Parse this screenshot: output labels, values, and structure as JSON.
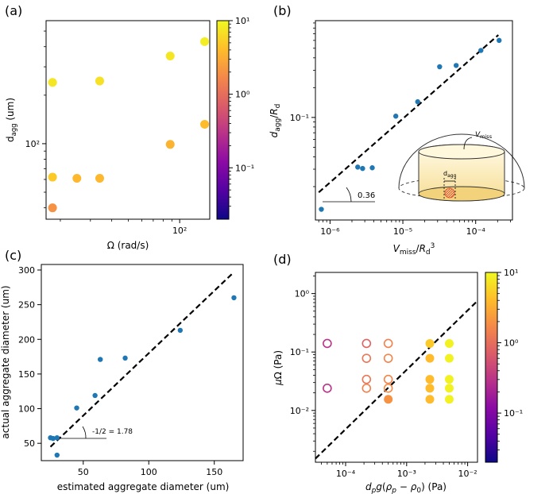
{
  "figure": {
    "panel_labels": [
      "(a)",
      "(b)",
      "(c)",
      "(d)"
    ]
  },
  "chart_data": [
    {
      "panel": "(a)",
      "type": "scatter",
      "xlabel": "Ω (rad/s)",
      "ylabel": "d_agg (um)",
      "xscale": "log",
      "yscale": "log",
      "xlim": [
        16.5,
        150
      ],
      "ylim": [
        34,
        580
      ],
      "x_ticks": [
        {
          "value": 100,
          "label": "10²"
        }
      ],
      "y_ticks": [
        {
          "value": 100,
          "label": "10²"
        }
      ],
      "points": [
        {
          "x": 18,
          "y": 40,
          "c": 2.0
        },
        {
          "x": 18,
          "y": 62,
          "c": 5.0
        },
        {
          "x": 18,
          "y": 240,
          "c": 7.5
        },
        {
          "x": 25,
          "y": 61,
          "c": 3.8
        },
        {
          "x": 34,
          "y": 61,
          "c": 3.8
        },
        {
          "x": 34,
          "y": 245,
          "c": 7.0
        },
        {
          "x": 88,
          "y": 99,
          "c": 3.5
        },
        {
          "x": 88,
          "y": 350,
          "c": 7.5
        },
        {
          "x": 140,
          "y": 132,
          "c": 4.0
        },
        {
          "x": 140,
          "y": 430,
          "c": 8.5
        }
      ],
      "colorbar": {
        "colormap": "plasma",
        "scale": "log",
        "range": [
          0.02,
          10
        ],
        "ticks": [
          {
            "value": 10,
            "label": "10¹"
          },
          {
            "value": 1,
            "label": "10⁰"
          },
          {
            "value": 0.1,
            "label": "10⁻¹"
          }
        ]
      }
    },
    {
      "panel": "(b)",
      "type": "scatter",
      "xlabel": "V_miss/R_d³",
      "ylabel": "d_agg/R_d",
      "xscale": "log",
      "yscale": "log",
      "xlim": [
        6.3e-07,
        0.00032
      ],
      "ylim": [
        0.0092,
        0.95
      ],
      "x_ticks": [
        {
          "value": 1e-06,
          "label": "10⁻⁶"
        },
        {
          "value": 1e-05,
          "label": "10⁻⁵"
        },
        {
          "value": 0.0001,
          "label": "10⁻⁴"
        }
      ],
      "y_ticks": [
        {
          "value": 0.1,
          "label": "10⁻¹"
        }
      ],
      "points": [
        {
          "x": 7.6e-07,
          "y": 0.0118
        },
        {
          "x": 2.4e-06,
          "y": 0.0315
        },
        {
          "x": 2.8e-06,
          "y": 0.0305
        },
        {
          "x": 3.8e-06,
          "y": 0.031
        },
        {
          "x": 8e-06,
          "y": 0.103
        },
        {
          "x": 1.6e-05,
          "y": 0.144
        },
        {
          "x": 3.2e-05,
          "y": 0.325
        },
        {
          "x": 5.4e-05,
          "y": 0.335
        },
        {
          "x": 0.000118,
          "y": 0.475
        },
        {
          "x": 0.00021,
          "y": 0.6
        }
      ],
      "fit_line": {
        "style": "dashed",
        "points": [
          [
            7e-07,
            0.0175
          ],
          [
            0.000205,
            0.68
          ]
        ]
      },
      "slope_annotation": "0.36",
      "inset": {
        "label_volume": "V_miss",
        "label_diameter": "d_agg"
      }
    },
    {
      "panel": "(c)",
      "type": "scatter",
      "xlabel": "estimated aggregate diameter (um)",
      "ylabel": "actual aggregate diameter (um)",
      "xlim": [
        18,
        172
      ],
      "ylim": [
        25,
        308
      ],
      "x_ticks": [
        50,
        100,
        150
      ],
      "y_ticks": [
        50,
        100,
        150,
        200,
        250,
        300
      ],
      "points": [
        {
          "x": 25,
          "y": 58
        },
        {
          "x": 27,
          "y": 57
        },
        {
          "x": 30,
          "y": 58
        },
        {
          "x": 30,
          "y": 33
        },
        {
          "x": 45,
          "y": 101
        },
        {
          "x": 59,
          "y": 119
        },
        {
          "x": 63,
          "y": 171
        },
        {
          "x": 82,
          "y": 173
        },
        {
          "x": 124,
          "y": 213
        },
        {
          "x": 165,
          "y": 260
        }
      ],
      "fit_line": {
        "style": "dashed",
        "points": [
          [
            25,
            45
          ],
          [
            165,
            297
          ]
        ]
      },
      "slope_annotation": "-1/2 = 1.78"
    },
    {
      "panel": "(d)",
      "type": "scatter",
      "xlabel": "d_p g(ρ_p − ρ_0) (Pa)",
      "ylabel": "μΩ (Pa)",
      "xscale": "log",
      "yscale": "log",
      "xlim": [
        3.2e-05,
        0.0145
      ],
      "ylim": [
        0.0013,
        2.3
      ],
      "x_ticks": [
        {
          "value": 0.0001,
          "label": "10⁻⁴"
        },
        {
          "value": 0.001,
          "label": "10⁻³"
        },
        {
          "value": 0.01,
          "label": "10⁻²"
        }
      ],
      "y_ticks": [
        {
          "value": 0.01,
          "label": "10⁻²"
        },
        {
          "value": 0.1,
          "label": "10⁻¹"
        },
        {
          "value": 1,
          "label": "10⁰"
        }
      ],
      "points": [
        {
          "x": 5e-05,
          "y": 0.14,
          "c": 0.3,
          "filled": false
        },
        {
          "x": 5e-05,
          "y": 0.024,
          "c": 0.3,
          "filled": false
        },
        {
          "x": 0.00022,
          "y": 0.14,
          "c": 0.8,
          "filled": false
        },
        {
          "x": 0.00022,
          "y": 0.078,
          "c": 1.2,
          "filled": false
        },
        {
          "x": 0.00022,
          "y": 0.034,
          "c": 1.2,
          "filled": false
        },
        {
          "x": 0.00022,
          "y": 0.024,
          "c": 1.5,
          "filled": false
        },
        {
          "x": 0.0005,
          "y": 0.14,
          "c": 1.5,
          "filled": false
        },
        {
          "x": 0.0005,
          "y": 0.078,
          "c": 1.6,
          "filled": false
        },
        {
          "x": 0.0005,
          "y": 0.034,
          "c": 1.6,
          "filled": false
        },
        {
          "x": 0.0005,
          "y": 0.024,
          "c": 1.8,
          "filled": false
        },
        {
          "x": 0.0005,
          "y": 0.0155,
          "c": 2.0,
          "filled": true
        },
        {
          "x": 0.0024,
          "y": 0.14,
          "c": 5.0,
          "filled": true
        },
        {
          "x": 0.0024,
          "y": 0.078,
          "c": 4.0,
          "filled": true
        },
        {
          "x": 0.0024,
          "y": 0.034,
          "c": 4.0,
          "filled": true
        },
        {
          "x": 0.0024,
          "y": 0.024,
          "c": 4.0,
          "filled": true
        },
        {
          "x": 0.0024,
          "y": 0.0155,
          "c": 4.0,
          "filled": true
        },
        {
          "x": 0.005,
          "y": 0.14,
          "c": 9.0,
          "filled": true
        },
        {
          "x": 0.005,
          "y": 0.078,
          "c": 9.0,
          "filled": true
        },
        {
          "x": 0.005,
          "y": 0.034,
          "c": 9.0,
          "filled": true
        },
        {
          "x": 0.005,
          "y": 0.024,
          "c": 9.0,
          "filled": true
        },
        {
          "x": 0.005,
          "y": 0.0155,
          "c": 9.0,
          "filled": true
        }
      ],
      "fit_line": {
        "style": "dashed",
        "points": [
          [
            3.2e-05,
            0.0015
          ],
          [
            0.0145,
            0.75
          ]
        ]
      },
      "colorbar": {
        "colormap": "plasma",
        "scale": "log",
        "range": [
          0.02,
          10
        ],
        "ticks": [
          {
            "value": 10,
            "label": "10¹"
          },
          {
            "value": 1,
            "label": "10⁰"
          },
          {
            "value": 0.1,
            "label": "10⁻¹"
          }
        ]
      }
    }
  ],
  "colors": {
    "point_blue": "#1f77b4",
    "plasma_stops": [
      "#0d0887",
      "#5302a3",
      "#8b0aa5",
      "#b83289",
      "#db5c68",
      "#f48849",
      "#febd2a",
      "#f0f921"
    ]
  }
}
